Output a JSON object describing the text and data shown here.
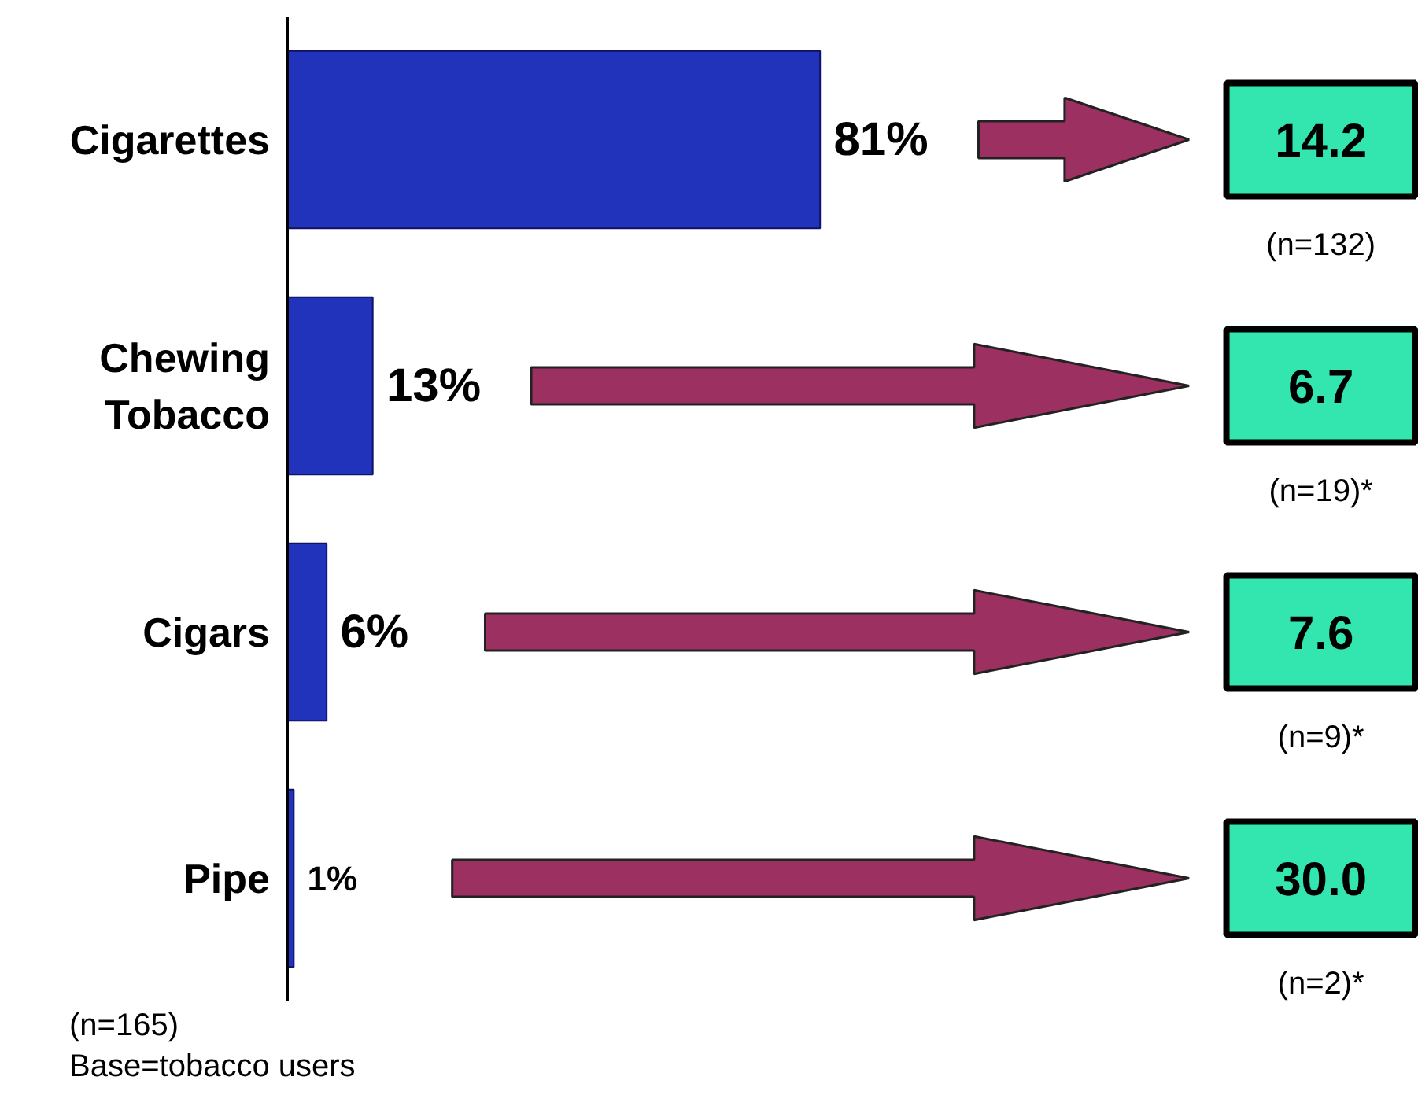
{
  "chart_data": {
    "type": "bar",
    "orientation": "horizontal",
    "categories": [
      "Cigarettes",
      "Chewing\nTobacco",
      "Cigars",
      "Pipe"
    ],
    "values": [
      81,
      13,
      6,
      1
    ],
    "value_labels": [
      "81%",
      "13%",
      "6%",
      "1%"
    ],
    "color": "#2233bb",
    "xlim": [
      0,
      172
    ],
    "tick_labels": "y",
    "grid": false,
    "annotations": [
      "14.2",
      "(n=132)",
      "6.7",
      "(n=19)*",
      "7.6",
      "(n=9)*",
      "30.0",
      "(n=2)*",
      "(n=165)",
      "Base=tobacco users"
    ]
  }
}
